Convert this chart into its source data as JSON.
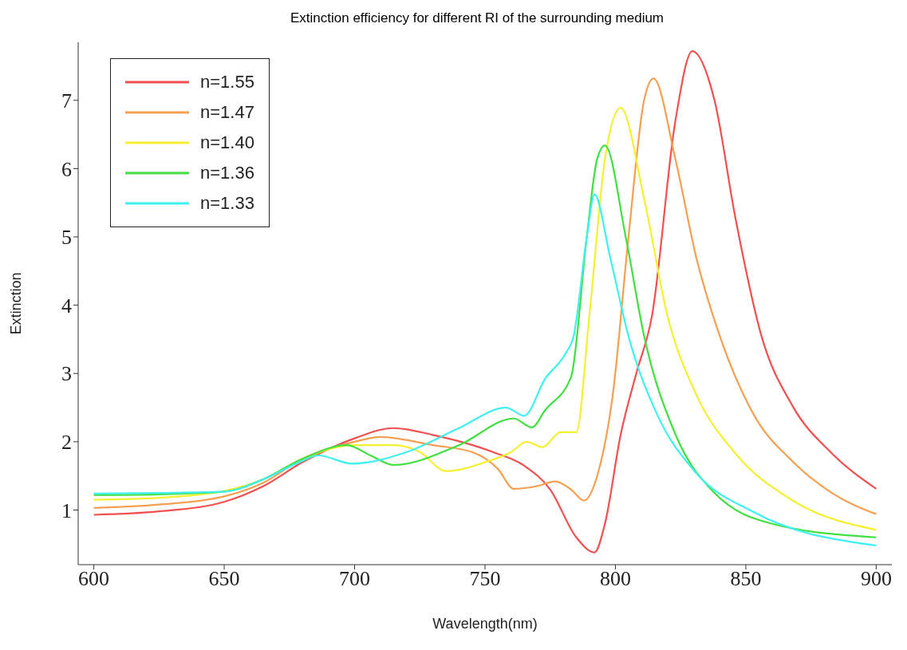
{
  "chart_data": {
    "type": "line",
    "title": "Extinction efficiency for different RI of the surrounding medium",
    "xlabel": "Wavelength(nm)",
    "ylabel": "Extinction",
    "xlim": [
      594,
      906
    ],
    "xticks": [
      600,
      650,
      700,
      750,
      800,
      850,
      900
    ],
    "ylim": [
      0.2,
      7.85
    ],
    "yticks": [
      1,
      2,
      3,
      4,
      5,
      6,
      7
    ],
    "grid": false,
    "legend": "top left",
    "marker": "none",
    "line_style": "solid",
    "series": [
      {
        "name": "n=1.55",
        "color": "#f05050",
        "x": [
          600,
          625,
          650,
          665,
          680,
          700,
          715,
          730,
          753,
          765,
          775,
          785,
          792,
          796,
          802,
          808,
          814,
          823,
          829.5,
          838,
          846,
          856,
          868,
          883,
          900
        ],
        "values": [
          0.93,
          0.98,
          1.12,
          1.35,
          1.7,
          2.05,
          2.2,
          2.1,
          1.85,
          1.65,
          1.3,
          0.6,
          0.38,
          0.8,
          2.1,
          3.0,
          3.84,
          6.7,
          7.72,
          7.0,
          5.28,
          3.55,
          2.52,
          1.83,
          1.31
        ]
      },
      {
        "name": "n=1.47",
        "color": "#f5a050",
        "x": [
          600,
          625,
          650,
          665,
          680,
          700,
          710,
          730,
          745,
          755,
          761,
          770,
          777,
          783,
          788,
          793,
          799,
          805,
          811,
          814.6,
          823,
          831,
          840,
          853,
          868,
          883,
          900
        ],
        "values": [
          1.03,
          1.08,
          1.2,
          1.4,
          1.75,
          2.0,
          2.07,
          1.95,
          1.85,
          1.6,
          1.31,
          1.35,
          1.42,
          1.3,
          1.14,
          1.5,
          2.69,
          4.99,
          7.0,
          7.32,
          6.14,
          4.7,
          3.55,
          2.4,
          1.71,
          1.25,
          0.94
        ]
      },
      {
        "name": "n=1.40",
        "color": "#f5f030",
        "x": [
          600,
          625,
          650,
          665,
          680,
          700,
          715,
          725,
          735,
          750,
          760,
          766,
          772,
          779,
          785,
          790,
          796,
          802,
          811,
          820,
          831,
          846,
          868,
          900
        ],
        "values": [
          1.15,
          1.18,
          1.28,
          1.45,
          1.75,
          1.95,
          1.95,
          1.85,
          1.57,
          1.7,
          1.85,
          2.0,
          1.92,
          2.14,
          2.14,
          3.84,
          6.14,
          6.89,
          5.56,
          3.84,
          2.69,
          1.83,
          1.14,
          0.71
        ]
      },
      {
        "name": "n=1.36",
        "color": "#40e040",
        "x": [
          600,
          625,
          650,
          665,
          680,
          697,
          706,
          715,
          740,
          761,
          768,
          773,
          783,
          789,
          793,
          796,
          804,
          811,
          823,
          838,
          861,
          900
        ],
        "values": [
          1.22,
          1.23,
          1.27,
          1.45,
          1.75,
          1.95,
          1.8,
          1.66,
          1.95,
          2.34,
          2.21,
          2.46,
          2.95,
          4.99,
          6.14,
          6.34,
          4.99,
          3.55,
          2.11,
          1.25,
          0.79,
          0.6
        ]
      },
      {
        "name": "n=1.33",
        "color": "#40f0f0",
        "x": [
          600,
          625,
          650,
          665,
          680,
          686,
          699,
          720,
          740,
          758,
          765,
          773,
          781,
          784,
          789,
          792,
          798,
          805,
          816,
          831,
          853,
          900
        ],
        "values": [
          1.24,
          1.25,
          1.27,
          1.45,
          1.72,
          1.8,
          1.68,
          1.85,
          2.2,
          2.5,
          2.38,
          2.92,
          3.3,
          3.55,
          4.99,
          5.62,
          4.7,
          3.55,
          2.4,
          1.54,
          0.97,
          0.48
        ]
      }
    ]
  }
}
